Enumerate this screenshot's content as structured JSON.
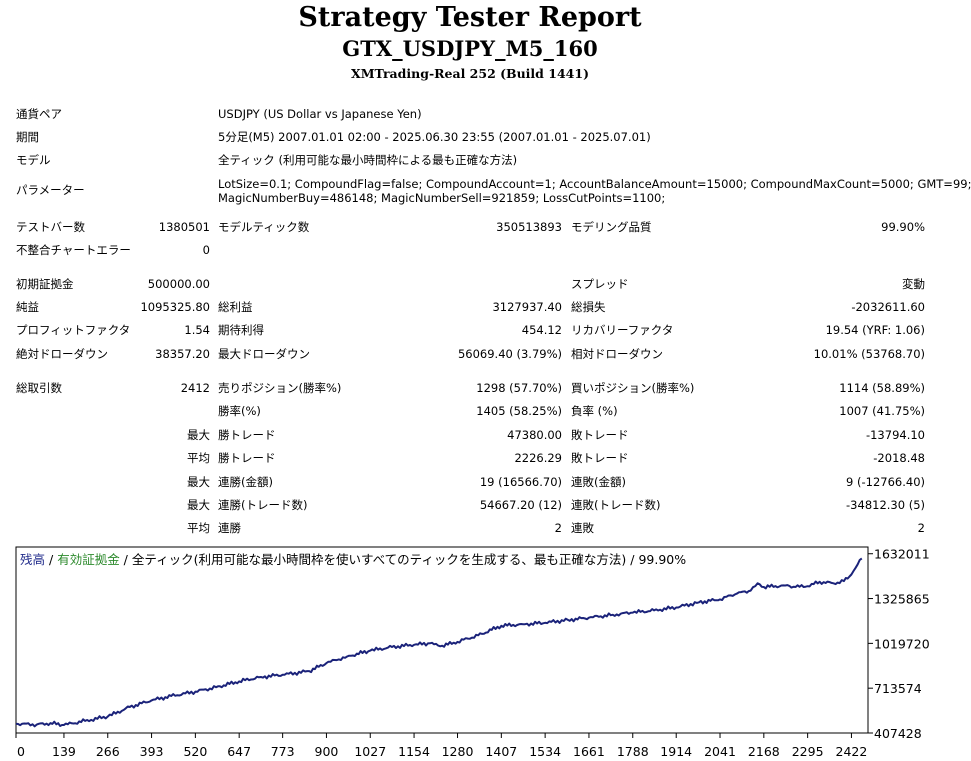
{
  "header": {
    "title": "Strategy Tester Report",
    "subtitle": "GTX_USDJPY_M5_160",
    "server": "XMTrading-Real 252 (Build 1441)"
  },
  "settings": {
    "symbol_label": "通貨ペア",
    "symbol_value": "USDJPY (US Dollar vs Japanese Yen)",
    "period_label": "期間",
    "period_value": "5分足(M5) 2007.01.01 02:00 - 2025.06.30 23:55 (2007.01.01 - 2025.07.01)",
    "model_label": "モデル",
    "model_value": "全ティック (利用可能な最小時間枠による最も正確な方法)",
    "params_label": "パラメーター",
    "params_line1": "LotSize=0.1; CompoundFlag=false; CompoundAccount=1; AccountBalanceAmount=15000; CompoundMaxCount=5000; GMT=99;",
    "params_line2": "MagicNumberBuy=486148; MagicNumberSell=921859; LossCutPoints=1100;"
  },
  "stats": {
    "bars_label": "テストバー数",
    "bars_value": "1380501",
    "ticks_label": "モデルティック数",
    "ticks_value": "350513893",
    "quality_label": "モデリング品質",
    "quality_value": "99.90%",
    "mismatch_label": "不整合チャートエラー",
    "mismatch_value": "0",
    "deposit_label": "初期証拠金",
    "deposit_value": "500000.00",
    "spread_label": "スプレッド",
    "spread_value": "変動",
    "net_label": "純益",
    "net_value": "1095325.80",
    "gross_profit_label": "総利益",
    "gross_profit_value": "3127937.40",
    "gross_loss_label": "総損失",
    "gross_loss_value": "-2032611.60",
    "pf_label": "プロフィットファクタ",
    "pf_value": "1.54",
    "expected_label": "期待利得",
    "expected_value": "454.12",
    "recovery_label": "リカバリーファクタ",
    "recovery_value": "19.54 (YRF: 1.06)",
    "abs_dd_label": "絶対ドローダウン",
    "abs_dd_value": "38357.20",
    "max_dd_label": "最大ドローダウン",
    "max_dd_value": "56069.40 (3.79%)",
    "rel_dd_label": "相対ドローダウン",
    "rel_dd_value": "10.01% (53768.70)",
    "trades_label": "総取引数",
    "trades_value": "2412",
    "short_label": "売りポジション(勝率%)",
    "short_value": "1298 (57.70%)",
    "long_label": "買いポジション(勝率%)",
    "long_value": "1114 (58.89%)",
    "win_rate_label": "勝率(%)",
    "win_rate_value": "1405 (58.25%)",
    "loss_rate_label": "負率 (%)",
    "loss_rate_value": "1007 (41.75%)",
    "max_word": "最大",
    "avg_word": "平均",
    "win_trade_label": "勝トレード",
    "loss_trade_label": "敗トレード",
    "max_win_value": "47380.00",
    "max_loss_value": "-13794.10",
    "avg_win_value": "2226.29",
    "avg_loss_value": "-2018.48",
    "cons_win_amount_label": "連勝(金額)",
    "cons_win_amount_value": "19 (16566.70)",
    "cons_loss_amount_label": "連敗(金額)",
    "cons_loss_amount_value": "9 (-12766.40)",
    "cons_win_trades_label": "連勝(トレード数)",
    "cons_win_trades_value": "54667.20 (12)",
    "cons_loss_trades_label": "連敗(トレード数)",
    "cons_loss_trades_value": "-34812.30 (5)",
    "avg_cons_win_label": "連勝",
    "avg_cons_win_value": "2",
    "avg_cons_loss_label": "連敗",
    "avg_cons_loss_value": "2"
  },
  "chart_legend": {
    "balance": "残高",
    "sep1": " / ",
    "equity": "有効証拠金",
    "sep2": " / ",
    "model": "全ティック(利用可能な最小時間枠を使いすべてのティックを生成する、最も正確な方法)",
    "sep3": " / ",
    "quality": "99.90%"
  },
  "colors": {
    "balance_line": "#1b237a",
    "balance_label": "#1f2a8a",
    "equity_label": "#2d8a2d"
  },
  "chart_data": {
    "type": "line",
    "title": "",
    "xlabel": "",
    "ylabel": "",
    "xlim": [
      0,
      2470
    ],
    "ylim": [
      407428,
      1678000
    ],
    "x_ticks": [
      "0",
      "139",
      "266",
      "393",
      "520",
      "647",
      "773",
      "900",
      "1027",
      "1154",
      "1280",
      "1407",
      "1534",
      "1661",
      "1788",
      "1914",
      "2041",
      "2168",
      "2295",
      "2422"
    ],
    "y_ticks": [
      "1632011",
      "1325865",
      "1019720",
      "713574",
      "407428"
    ],
    "series": [
      {
        "name": "残高",
        "x": [
          0,
          60,
          100,
          139,
          200,
          266,
          330,
          393,
          450,
          520,
          580,
          647,
          710,
          773,
          850,
          900,
          960,
          1027,
          1090,
          1154,
          1200,
          1230,
          1280,
          1340,
          1407,
          1470,
          1534,
          1600,
          1661,
          1730,
          1788,
          1850,
          1914,
          1980,
          2041,
          2090,
          2130,
          2150,
          2168,
          2230,
          2260,
          2295,
          2330,
          2370,
          2400,
          2422,
          2440,
          2452
        ],
        "y": [
          470000,
          465000,
          475000,
          462000,
          490000,
          520000,
          585000,
          630000,
          660000,
          690000,
          720000,
          760000,
          790000,
          805000,
          830000,
          885000,
          930000,
          970000,
          995000,
          1010000,
          1020000,
          1000000,
          1030000,
          1075000,
          1140000,
          1150000,
          1160000,
          1180000,
          1195000,
          1215000,
          1230000,
          1245000,
          1265000,
          1300000,
          1320000,
          1360000,
          1380000,
          1430000,
          1405000,
          1415000,
          1405000,
          1410000,
          1440000,
          1430000,
          1445000,
          1490000,
          1560000,
          1600000
        ]
      }
    ]
  }
}
